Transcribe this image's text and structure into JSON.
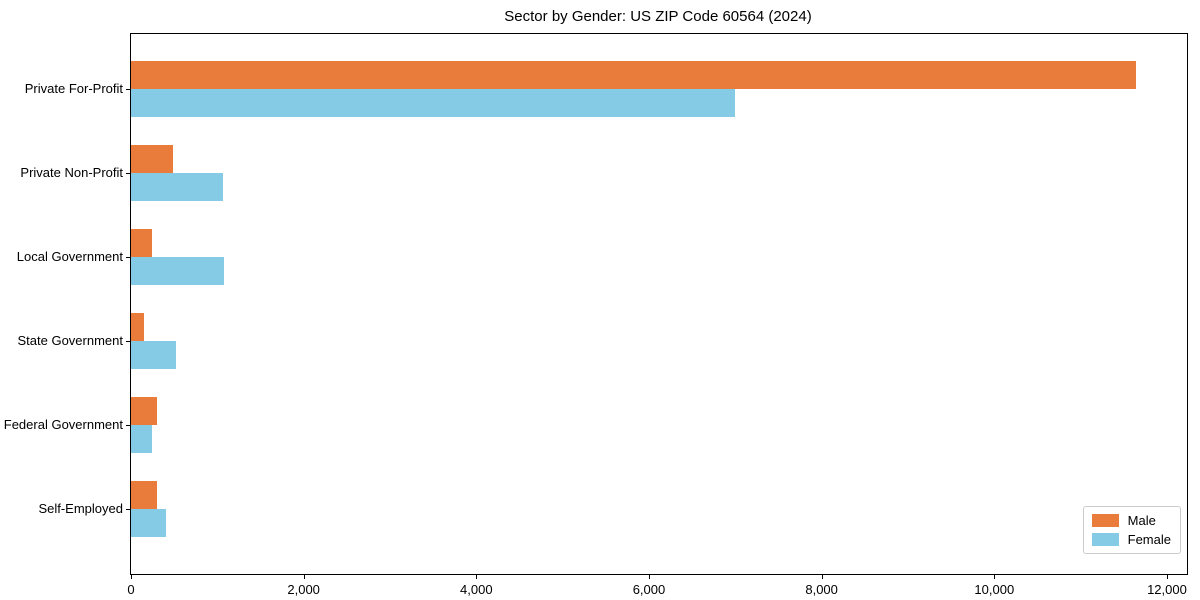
{
  "chart_data": {
    "type": "bar",
    "orientation": "horizontal",
    "title": "Sector by Gender: US ZIP Code 60564 (2024)",
    "categories": [
      "Private For-Profit",
      "Private Non-Profit",
      "Local Government",
      "State Government",
      "Federal Government",
      "Self-Employed"
    ],
    "series": [
      {
        "name": "Male",
        "color": "#E97C3B",
        "values": [
          11640,
          490,
          245,
          150,
          300,
          300
        ]
      },
      {
        "name": "Female",
        "color": "#85CBE6",
        "values": [
          7000,
          1070,
          1080,
          520,
          240,
          410
        ]
      }
    ],
    "xlabel": "",
    "ylabel": "",
    "xlim": [
      0,
      12232
    ],
    "xticks": {
      "values": [
        0,
        2000,
        4000,
        6000,
        8000,
        10000,
        12000
      ],
      "labels": [
        "0",
        "2,000",
        "4,000",
        "6,000",
        "8,000",
        "10,000",
        "12,000"
      ]
    },
    "grid": false,
    "legend": {
      "position": "lower right",
      "entries": [
        "Male",
        "Female"
      ]
    }
  }
}
